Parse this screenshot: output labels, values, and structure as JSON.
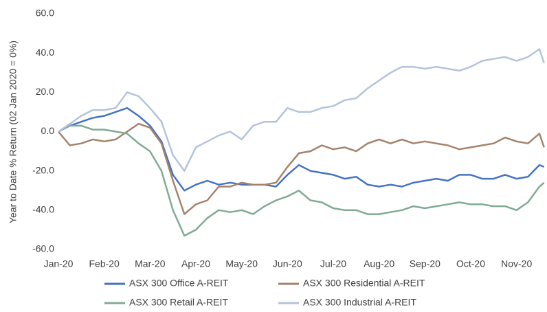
{
  "chart_data": {
    "type": "line",
    "y_label": "Year to Date % Return (02 Jan 2020 = 0%)",
    "x": [
      0,
      0.25,
      0.5,
      0.75,
      1,
      1.25,
      1.5,
      1.75,
      2,
      2.25,
      2.5,
      2.75,
      3,
      3.25,
      3.5,
      3.75,
      4,
      4.25,
      4.5,
      4.75,
      5,
      5.25,
      5.5,
      5.75,
      6,
      6.25,
      6.5,
      6.75,
      7,
      7.25,
      7.5,
      7.75,
      8,
      8.25,
      8.5,
      8.75,
      9,
      9.25,
      9.5,
      9.75,
      10,
      10.25,
      10.5,
      10.6
    ],
    "xlim": [
      0,
      10.65
    ],
    "xticks": [
      {
        "value": 0,
        "label": "Jan-20"
      },
      {
        "value": 1,
        "label": "Feb-20"
      },
      {
        "value": 2,
        "label": "Mar-20"
      },
      {
        "value": 3,
        "label": "Apr-20"
      },
      {
        "value": 4,
        "label": "May-20"
      },
      {
        "value": 5,
        "label": "Jun-20"
      },
      {
        "value": 6,
        "label": "Jul-20"
      },
      {
        "value": 7,
        "label": "Aug-20"
      },
      {
        "value": 8,
        "label": "Sep-20"
      },
      {
        "value": 9,
        "label": "Oct-20"
      },
      {
        "value": 10,
        "label": "Nov-20"
      }
    ],
    "ylim": [
      -60,
      60
    ],
    "yticks": [
      {
        "value": -60,
        "label": "-60.0"
      },
      {
        "value": -40,
        "label": "-40.0"
      },
      {
        "value": -20,
        "label": "-20.0"
      },
      {
        "value": 0,
        "label": "0.0"
      },
      {
        "value": 20,
        "label": "20.0"
      },
      {
        "value": 40,
        "label": "40.0"
      },
      {
        "value": 60,
        "label": "60.0"
      }
    ],
    "grid": false,
    "series": [
      {
        "name": "ASX 300 Office A-REIT",
        "color": "#4472c4",
        "values": [
          0,
          3,
          5,
          7,
          8,
          10,
          12,
          8,
          3,
          -5,
          -22,
          -30,
          -27,
          -25,
          -27,
          -26,
          -27,
          -27,
          -27,
          -28,
          -22,
          -17,
          -20,
          -21,
          -22,
          -24,
          -23,
          -27,
          -28,
          -27,
          -28,
          -26,
          -25,
          -24,
          -25,
          -22,
          -22,
          -24,
          -24,
          -22,
          -24,
          -23,
          -17,
          -18
        ]
      },
      {
        "name": "ASX 300 Residential A-REIT",
        "color": "#a5826a",
        "values": [
          0,
          -7,
          -6,
          -4,
          -5,
          -4,
          0,
          4,
          2,
          -6,
          -25,
          -42,
          -37,
          -35,
          -28,
          -28,
          -26,
          -27,
          -27,
          -26,
          -18,
          -11,
          -10,
          -7,
          -9,
          -8,
          -10,
          -6,
          -4,
          -6,
          -4,
          -6,
          -5,
          -6,
          -7,
          -9,
          -8,
          -7,
          -6,
          -3,
          -5,
          -6,
          -1,
          -8
        ]
      },
      {
        "name": "ASX 300 Retail A-REIT",
        "color": "#7fab94",
        "values": [
          0,
          3,
          3,
          1,
          1,
          0,
          -1,
          -6,
          -10,
          -20,
          -40,
          -53,
          -50,
          -44,
          -40,
          -41,
          -40,
          -42,
          -38,
          -35,
          -33,
          -30,
          -35,
          -36,
          -39,
          -40,
          -40,
          -42,
          -42,
          -41,
          -40,
          -38,
          -39,
          -38,
          -37,
          -36,
          -37,
          -37,
          -38,
          -38,
          -40,
          -36,
          -28,
          -26
        ]
      },
      {
        "name": "ASX 300 Industrial A-REIT",
        "color": "#b4c2dc",
        "values": [
          0,
          4,
          8,
          11,
          11,
          12,
          20,
          18,
          12,
          5,
          -12,
          -20,
          -8,
          -5,
          -2,
          0,
          -4,
          3,
          5,
          5,
          12,
          10,
          10,
          12,
          13,
          16,
          17,
          22,
          26,
          30,
          33,
          33,
          32,
          33,
          32,
          31,
          33,
          36,
          37,
          38,
          36,
          38,
          42,
          35
        ]
      }
    ]
  }
}
